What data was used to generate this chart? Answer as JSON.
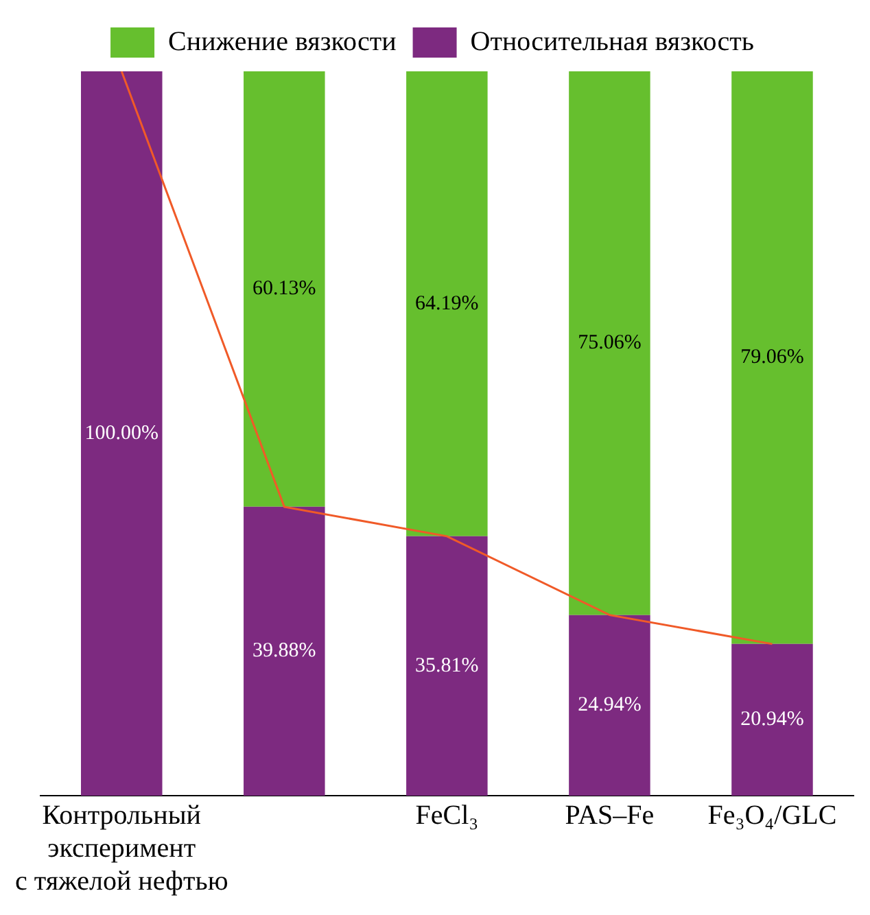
{
  "chart_data": {
    "type": "bar",
    "stacked": true,
    "categories": [
      "Контрольный\nэксперимент\nс тяжелой нефтью",
      null,
      "FeCl₃",
      "PAS–Fe",
      "Fe₃O₄/GLC"
    ],
    "ylim": [
      0,
      100
    ],
    "legend": "top",
    "grid": false,
    "data_labels": true,
    "series": [
      {
        "name": "Относительная вязкость",
        "color": "#7d2a80",
        "values": [
          100.0,
          39.88,
          35.81,
          24.94,
          20.94
        ],
        "value_labels": [
          "100.00%",
          "39.88%",
          "35.81%",
          "24.94%",
          "20.94%"
        ]
      },
      {
        "name": "Снижение вязкости",
        "color": "#66bf2e",
        "values": [
          null,
          60.13,
          64.19,
          75.06,
          79.06
        ],
        "value_labels": [
          null,
          "60.13%",
          "64.19%",
          "75.06%",
          "79.06%"
        ]
      },
      {
        "type": "line",
        "color": "#f05a28",
        "values": [
          100.0,
          39.88,
          35.81,
          24.94,
          20.94
        ],
        "value_labels": [
          null,
          null,
          null,
          null,
          null
        ]
      }
    ]
  }
}
